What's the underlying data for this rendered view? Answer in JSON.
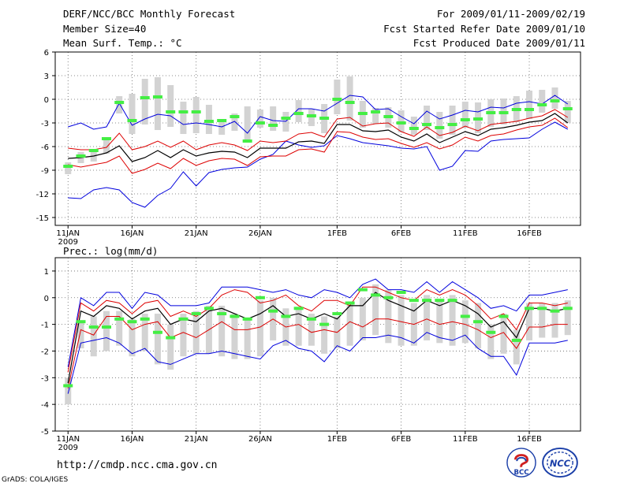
{
  "header": {
    "title": "DERF/NCC/BCC Monthly Forecast",
    "member_size": "Member Size=40",
    "variable": "Mean Surf. Temp.: °C",
    "period": "For 2009/01/11-2009/02/19",
    "fcst_started": "Fcst Started Refer Date 2009/01/10",
    "fcst_produced": "Fcst Produced Date 2009/01/11"
  },
  "footer": {
    "url": "http://cmdp.ncc.cma.gov.cn",
    "grads": "GrADS: COLA/IGES",
    "logo_bcc": "BCC",
    "logo_ncc": "NCC"
  },
  "colors": {
    "box": "#d3d3d3",
    "ens_mean": "#000000",
    "inner_band": "#dd0000",
    "outer_band": "#0000dd",
    "marker": "#44ee44",
    "grid": "#666666"
  },
  "chart_data": [
    {
      "type": "line",
      "title": "Mean Surf. Temp.: °C",
      "xlabel": "",
      "ylabel": "",
      "x_tick_labels": [
        "11JAN",
        "16JAN",
        "21JAN",
        "26JAN",
        "1FEB",
        "6FEB",
        "11FEB",
        "16FEB"
      ],
      "x_tick_sub": "2009",
      "x_tick_days": [
        1,
        6,
        11,
        16,
        22,
        27,
        32,
        37
      ],
      "xlim": [
        0,
        41
      ],
      "ylim": [
        -16,
        6
      ],
      "y_ticks": [
        6,
        3,
        0,
        -3,
        -6,
        -9,
        -12,
        -15
      ],
      "grid": true,
      "days": [
        1,
        2,
        3,
        4,
        5,
        6,
        7,
        8,
        9,
        10,
        11,
        12,
        13,
        14,
        15,
        16,
        17,
        18,
        19,
        20,
        21,
        22,
        23,
        24,
        25,
        26,
        27,
        28,
        29,
        30,
        31,
        32,
        33,
        34,
        35,
        36,
        37,
        38,
        39,
        40
      ],
      "series": [
        {
          "name": "max",
          "values": [
            -3.5,
            -3,
            -3.8,
            -3.5,
            -0.5,
            -3.3,
            -2.5,
            -1.9,
            -2.1,
            -3.2,
            -3,
            -3.2,
            -3.5,
            -2.8,
            -4.3,
            -2.2,
            -2.7,
            -2.8,
            -1.2,
            -1.2,
            -1.5,
            -0.5,
            0.5,
            0.3,
            -1.3,
            -1.2,
            -2.2,
            -3.1,
            -1.5,
            -2.5,
            -2,
            -1.4,
            -1.6,
            -1,
            -1.1,
            -0.5,
            -0.3,
            -0.6,
            0.5,
            -0.6
          ]
        },
        {
          "name": "upper",
          "values": [
            -6.2,
            -6.4,
            -6.4,
            -6.1,
            -4.3,
            -6.4,
            -6,
            -5.3,
            -6.1,
            -5.3,
            -6.4,
            -5.8,
            -5.5,
            -5.8,
            -6.5,
            -5.3,
            -5.5,
            -5.3,
            -4.4,
            -4.2,
            -4.8,
            -2.5,
            -2.3,
            -3.4,
            -3.1,
            -3,
            -4.1,
            -4.7,
            -3.5,
            -4.6,
            -4.2,
            -3.4,
            -4,
            -3.2,
            -3,
            -2.8,
            -2.4,
            -2.1,
            -1.3,
            -2.3
          ]
        },
        {
          "name": "mean",
          "values": [
            -7.5,
            -7.4,
            -7.2,
            -6.8,
            -5.9,
            -7.9,
            -7.4,
            -6.5,
            -7.4,
            -6.4,
            -7.2,
            -6.8,
            -6.6,
            -6.7,
            -7.4,
            -6.2,
            -6.2,
            -6.2,
            -5.4,
            -5.3,
            -5.6,
            -3.2,
            -3.2,
            -4,
            -4.1,
            -3.9,
            -4.8,
            -5.3,
            -4.4,
            -5.5,
            -4.8,
            -4.1,
            -4.6,
            -3.8,
            -3.6,
            -3.3,
            -2.9,
            -2.7,
            -1.8,
            -3
          ]
        },
        {
          "name": "lower",
          "values": [
            -8.3,
            -8.6,
            -8.3,
            -8,
            -7.2,
            -9.4,
            -8.9,
            -8.1,
            -8.8,
            -7.5,
            -8.4,
            -7.8,
            -7.5,
            -7.6,
            -8.4,
            -7.3,
            -7.2,
            -7.2,
            -6.4,
            -6.3,
            -6.7,
            -4.1,
            -4.2,
            -4.8,
            -5.1,
            -5,
            -5.6,
            -6.1,
            -5.5,
            -6.3,
            -5.8,
            -4.8,
            -5.3,
            -4.6,
            -4.4,
            -3.9,
            -3.5,
            -3.3,
            -2.4,
            -3.6
          ]
        },
        {
          "name": "min",
          "values": [
            -12.5,
            -12.6,
            -11.5,
            -11.2,
            -11.5,
            -13.1,
            -13.7,
            -12.2,
            -11.3,
            -9.2,
            -11,
            -9.3,
            -8.9,
            -8.7,
            -8.6,
            -7.6,
            -7,
            -5.3,
            -5.8,
            -6.1,
            -5.9,
            -4.6,
            -5,
            -5.5,
            -5.7,
            -5.9,
            -6.2,
            -6.3,
            -6,
            -9,
            -8.5,
            -6.5,
            -6.6,
            -5.3,
            -5.1,
            -5,
            -4.9,
            -3.8,
            -2.9,
            -3.8
          ]
        },
        {
          "name": "box_top",
          "values": [
            -8,
            -6.7,
            -6.3,
            -5,
            0.4,
            0.7,
            2.6,
            2.8,
            1.8,
            -0.3,
            0.3,
            -0.7,
            -2.5,
            -1.8,
            -0.9,
            -1.3,
            -0.9,
            -1.6,
            -0.1,
            -1.2,
            -0.6,
            2.5,
            2.9,
            -0.2,
            -1.1,
            -1,
            -1.4,
            -2.2,
            -0.8,
            -1.6,
            -0.8,
            -0.3,
            -0.4,
            0,
            0.1,
            0.4,
            1.1,
            1.2,
            1.5,
            -0.2
          ]
        },
        {
          "name": "box_bottom",
          "values": [
            -9.5,
            -8.1,
            -7.9,
            -6.9,
            -1.8,
            -4.4,
            -3.2,
            -3.9,
            -3.5,
            -4.4,
            -4.3,
            -4.4,
            -4.5,
            -4,
            -5.2,
            -3.6,
            -4,
            -4.1,
            -2.9,
            -3.4,
            -4.3,
            -1.9,
            -2.7,
            -3.6,
            -3.1,
            -3.6,
            -4.2,
            -4.5,
            -3.9,
            -5,
            -4.5,
            -3.6,
            -4.3,
            -3.5,
            -3.2,
            -2.9,
            -2.5,
            -1.7,
            -1.2,
            -3
          ]
        },
        {
          "name": "marker",
          "values": [
            -8.5,
            -7.2,
            -6.5,
            -5,
            -0.4,
            -2.7,
            0.2,
            0.3,
            -1.6,
            -1.6,
            -1.6,
            -2.8,
            -2.7,
            -2.2,
            -5.3,
            -3,
            -3.3,
            -2.4,
            -1.8,
            -2.1,
            -2.4,
            0,
            -0.4,
            -1.8,
            -1.6,
            -2.2,
            -3,
            -3.7,
            -3.2,
            -3.6,
            -3.2,
            -2.6,
            -2.5,
            -1.7,
            -1.7,
            -1.3,
            -1.3,
            -0.7,
            -0.2,
            -1.2
          ]
        }
      ]
    },
    {
      "type": "line",
      "title": "Prec.: log(mm/d)",
      "xlabel": "",
      "ylabel": "",
      "x_tick_labels": [
        "11JAN",
        "16JAN",
        "21JAN",
        "26JAN",
        "1FEB",
        "6FEB",
        "11FEB",
        "16FEB"
      ],
      "x_tick_sub": "2009",
      "x_tick_days": [
        1,
        6,
        11,
        16,
        22,
        27,
        32,
        37
      ],
      "xlim": [
        0,
        41
      ],
      "ylim": [
        -5,
        1.5
      ],
      "y_ticks": [
        1,
        0,
        -1,
        -2,
        -3,
        -4,
        -5
      ],
      "grid": true,
      "days": [
        1,
        2,
        3,
        4,
        5,
        6,
        7,
        8,
        9,
        10,
        11,
        12,
        13,
        14,
        15,
        16,
        17,
        18,
        19,
        20,
        21,
        22,
        23,
        24,
        25,
        26,
        27,
        28,
        29,
        30,
        31,
        32,
        33,
        34,
        35,
        36,
        37,
        38,
        39,
        40
      ],
      "series": [
        {
          "name": "max",
          "values": [
            -2.6,
            0,
            -0.3,
            0.2,
            0.2,
            -0.4,
            0.2,
            0.1,
            -0.3,
            -0.3,
            -0.3,
            -0.2,
            0.4,
            0.4,
            0.4,
            0.3,
            0.2,
            0.3,
            0.1,
            0,
            0.3,
            0.2,
            0,
            0.5,
            0.7,
            0.3,
            0.3,
            0.2,
            0.6,
            0.2,
            0.6,
            0.3,
            0,
            -0.4,
            -0.3,
            -0.5,
            0.1,
            0.1,
            0.2,
            0.3
          ]
        },
        {
          "name": "upper",
          "values": [
            -2.8,
            -0.2,
            -0.5,
            -0.1,
            -0.2,
            -0.6,
            -0.2,
            -0.1,
            -0.7,
            -0.5,
            -0.7,
            -0.4,
            0.1,
            0.3,
            0.2,
            -0.2,
            -0.1,
            0.1,
            -0.3,
            -0.5,
            -0.1,
            -0.1,
            -0.3,
            0.4,
            0.4,
            0.2,
            0,
            -0.1,
            0.3,
            0.1,
            0.3,
            0.1,
            -0.3,
            -0.8,
            -0.6,
            -1.2,
            -0.2,
            -0.2,
            -0.3,
            -0.2
          ]
        },
        {
          "name": "mean",
          "values": [
            -3.2,
            -0.5,
            -0.7,
            -0.3,
            -0.4,
            -0.8,
            -0.5,
            -0.4,
            -1,
            -0.8,
            -0.9,
            -0.5,
            -0.4,
            -0.6,
            -0.8,
            -0.6,
            -0.3,
            -0.7,
            -0.6,
            -0.8,
            -0.6,
            -0.8,
            -0.3,
            -0.3,
            0.2,
            -0.1,
            -0.3,
            -0.5,
            -0.1,
            -0.3,
            -0.1,
            -0.3,
            -0.6,
            -1.1,
            -0.9,
            -1.5,
            -0.4,
            -0.4,
            -0.5,
            -0.4
          ]
        },
        {
          "name": "lower",
          "values": [
            -3.4,
            -1.2,
            -1.4,
            -0.7,
            -0.7,
            -1.2,
            -1,
            -0.9,
            -1.5,
            -1.3,
            -1.5,
            -1.2,
            -0.9,
            -1.2,
            -1.2,
            -1.1,
            -0.8,
            -1.1,
            -1,
            -1.3,
            -1.2,
            -1.3,
            -0.9,
            -1.1,
            -0.8,
            -0.8,
            -0.9,
            -1,
            -0.8,
            -1,
            -0.9,
            -1,
            -1.2,
            -1.5,
            -1.3,
            -1.9,
            -1.1,
            -1.1,
            -1,
            -1
          ]
        },
        {
          "name": "min",
          "values": [
            -3.6,
            -1.7,
            -1.6,
            -1.5,
            -1.7,
            -2.1,
            -1.9,
            -2.4,
            -2.5,
            -2.3,
            -2.1,
            -2.1,
            -2,
            -2.1,
            -2.2,
            -2.3,
            -1.8,
            -1.6,
            -1.9,
            -2,
            -2.4,
            -1.8,
            -2,
            -1.5,
            -1.5,
            -1.4,
            -1.5,
            -1.7,
            -1.3,
            -1.5,
            -1.6,
            -1.4,
            -1.9,
            -2.2,
            -2.2,
            -2.9,
            -1.7,
            -1.7,
            -1.7,
            -1.6
          ]
        },
        {
          "name": "box_top",
          "values": [
            -3,
            -0.9,
            -0.7,
            -0.5,
            -0.5,
            -0.8,
            -0.6,
            -0.6,
            -1,
            -0.6,
            -0.5,
            -0.3,
            -0.3,
            -0.6,
            -0.8,
            -0.1,
            0,
            -0.4,
            -0.4,
            -0.6,
            -0.7,
            -0.7,
            -0.2,
            0,
            0.5,
            0.3,
            0.1,
            -0.2,
            0.1,
            -0.1,
            0.1,
            -0.1,
            -0.2,
            -1,
            -0.6,
            -1.2,
            -0.2,
            -0.2,
            -0.2,
            -0.1
          ]
        },
        {
          "name": "box_bottom",
          "values": [
            -4,
            -1.9,
            -2.2,
            -2,
            -1.8,
            -2.2,
            -2,
            -2.5,
            -2.7,
            -2.2,
            -2.1,
            -2.1,
            -2.2,
            -2.3,
            -2.3,
            -2.2,
            -1.6,
            -1.8,
            -1.8,
            -1.8,
            -2.1,
            -1.9,
            -1.8,
            -1.6,
            -1.4,
            -1.7,
            -1.8,
            -1.8,
            -1.6,
            -1.7,
            -1.8,
            -1.7,
            -1.9,
            -2.3,
            -2.1,
            -2.5,
            -1.6,
            -1.5,
            -1.5,
            -1.4
          ]
        },
        {
          "name": "marker",
          "values": [
            -3.3,
            -0.9,
            -1.1,
            -1.1,
            -0.8,
            -0.9,
            -0.8,
            -1.3,
            -1.5,
            -0.8,
            -0.6,
            -0.4,
            -0.6,
            -0.7,
            -0.8,
            0,
            -0.5,
            -0.7,
            -0.4,
            -0.8,
            -1,
            -0.6,
            -0.2,
            0.3,
            0.1,
            0,
            0.2,
            -0.1,
            -0.1,
            -0.1,
            -0.1,
            -0.7,
            -0.9,
            -1.3,
            -0.7,
            -1.6,
            -0.4,
            -0.4,
            -0.5,
            -0.4
          ]
        }
      ]
    }
  ]
}
